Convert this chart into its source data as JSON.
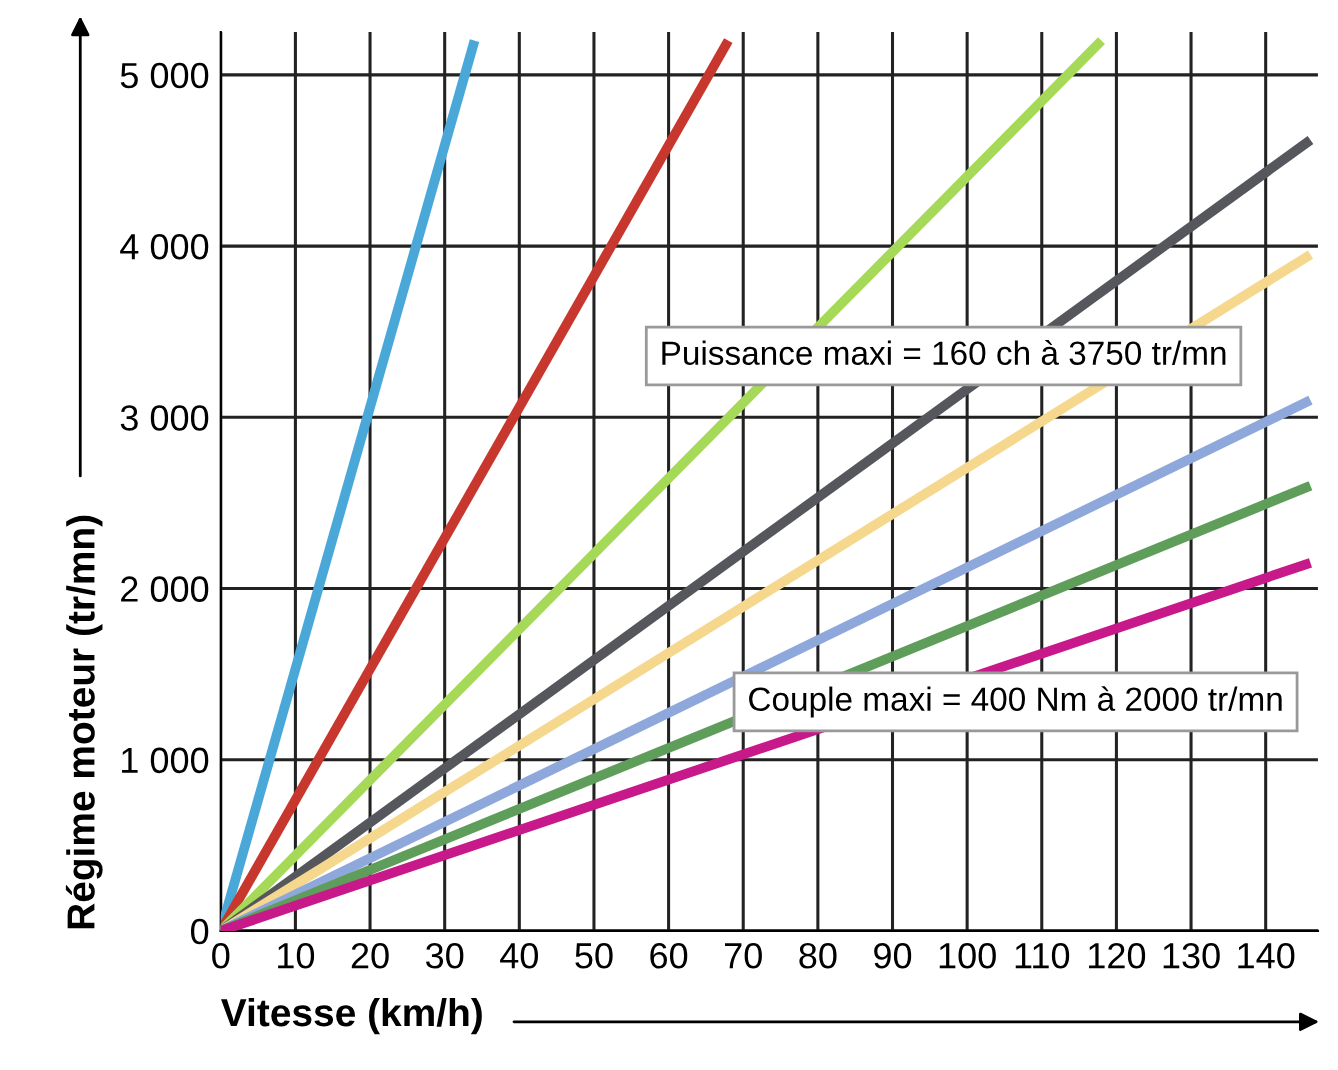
{
  "chart_data": {
    "type": "line",
    "xlabel": "Vitesse (km/h)",
    "ylabel": "Régime moteur (tr/mn)",
    "series": [
      {
        "color": "#4aa8d8",
        "x": [
          0,
          34
        ],
        "values": [
          0,
          5200
        ]
      },
      {
        "color": "#c8372d",
        "x": [
          0,
          68
        ],
        "values": [
          0,
          5200
        ]
      },
      {
        "color": "#a6d957",
        "x": [
          0,
          118
        ],
        "values": [
          0,
          5200
        ]
      },
      {
        "color": "#55575c",
        "x": [
          0,
          146
        ],
        "values": [
          0,
          4620
        ]
      },
      {
        "color": "#f5d88e",
        "x": [
          0,
          146
        ],
        "values": [
          0,
          3950
        ]
      },
      {
        "color": "#8fa8dc",
        "x": [
          0,
          146
        ],
        "values": [
          0,
          3100
        ]
      },
      {
        "color": "#5e9e5a",
        "x": [
          0,
          146
        ],
        "values": [
          0,
          2600
        ]
      },
      {
        "color": "#c8198a",
        "x": [
          0,
          146
        ],
        "values": [
          0,
          2150
        ]
      }
    ],
    "annotations": [
      "Puissance maxi = 160 ch à 3750 tr/mn",
      "Couple maxi = 400 Nm à 2000 tr/mn"
    ],
    "xlim": [
      0,
      147
    ],
    "ylim": [
      0,
      5250
    ],
    "xticks": [
      0,
      10,
      20,
      30,
      40,
      50,
      60,
      70,
      80,
      90,
      100,
      110,
      120,
      130,
      140
    ],
    "yticks": [
      0,
      {
        "value": 1000,
        "label": "1 000"
      },
      {
        "value": 2000,
        "label": "2 000"
      },
      {
        "value": 3000,
        "label": "3 000"
      },
      {
        "value": 4000,
        "label": "4 000"
      },
      {
        "value": 5000,
        "label": "5 000"
      }
    ],
    "grid": true,
    "legend": false,
    "marker": "none",
    "line_style": "solid"
  }
}
